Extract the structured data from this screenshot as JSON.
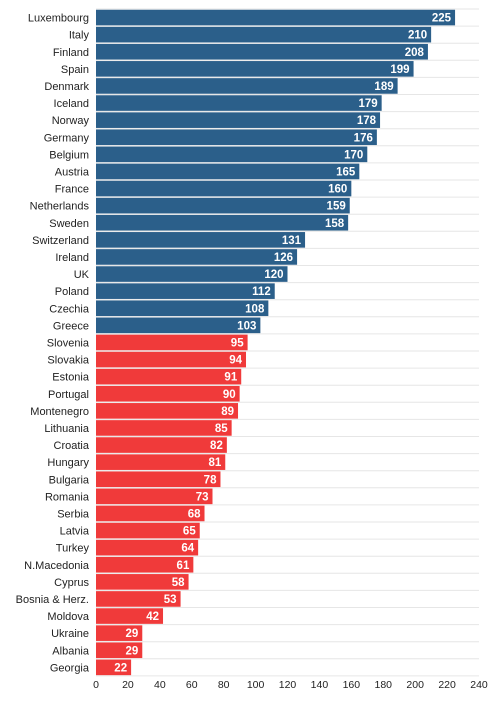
{
  "chart_data": {
    "type": "bar",
    "orientation": "horizontal",
    "title": "",
    "xlabel": "",
    "ylabel": "",
    "xlim": [
      0,
      240
    ],
    "x_ticks": [
      0,
      20,
      40,
      60,
      80,
      100,
      120,
      140,
      160,
      180,
      200,
      220,
      240
    ],
    "grid": true,
    "categories": [
      "Luxembourg",
      "Italy",
      "Finland",
      "Spain",
      "Denmark",
      "Iceland",
      "Norway",
      "Germany",
      "Belgium",
      "Austria",
      "France",
      "Netherlands",
      "Sweden",
      "Switzerland",
      "Ireland",
      "UK",
      "Poland",
      "Czechia",
      "Greece",
      "Slovenia",
      "Slovakia",
      "Estonia",
      "Portugal",
      "Montenegro",
      "Lithuania",
      "Croatia",
      "Hungary",
      "Bulgaria",
      "Romania",
      "Serbia",
      "Latvia",
      "Turkey",
      "N.Macedonia",
      "Cyprus",
      "Bosnia & Herz.",
      "Moldova",
      "Ukraine",
      "Albania",
      "Georgia"
    ],
    "values": [
      225,
      210,
      208,
      199,
      189,
      179,
      178,
      176,
      170,
      165,
      160,
      159,
      158,
      131,
      126,
      120,
      112,
      108,
      103,
      95,
      94,
      91,
      90,
      89,
      85,
      82,
      81,
      78,
      73,
      68,
      65,
      64,
      61,
      58,
      53,
      42,
      29,
      29,
      22
    ],
    "colors": {
      "above": "#2b5f8a",
      "below": "#f03a3a"
    },
    "color_threshold": 100
  }
}
